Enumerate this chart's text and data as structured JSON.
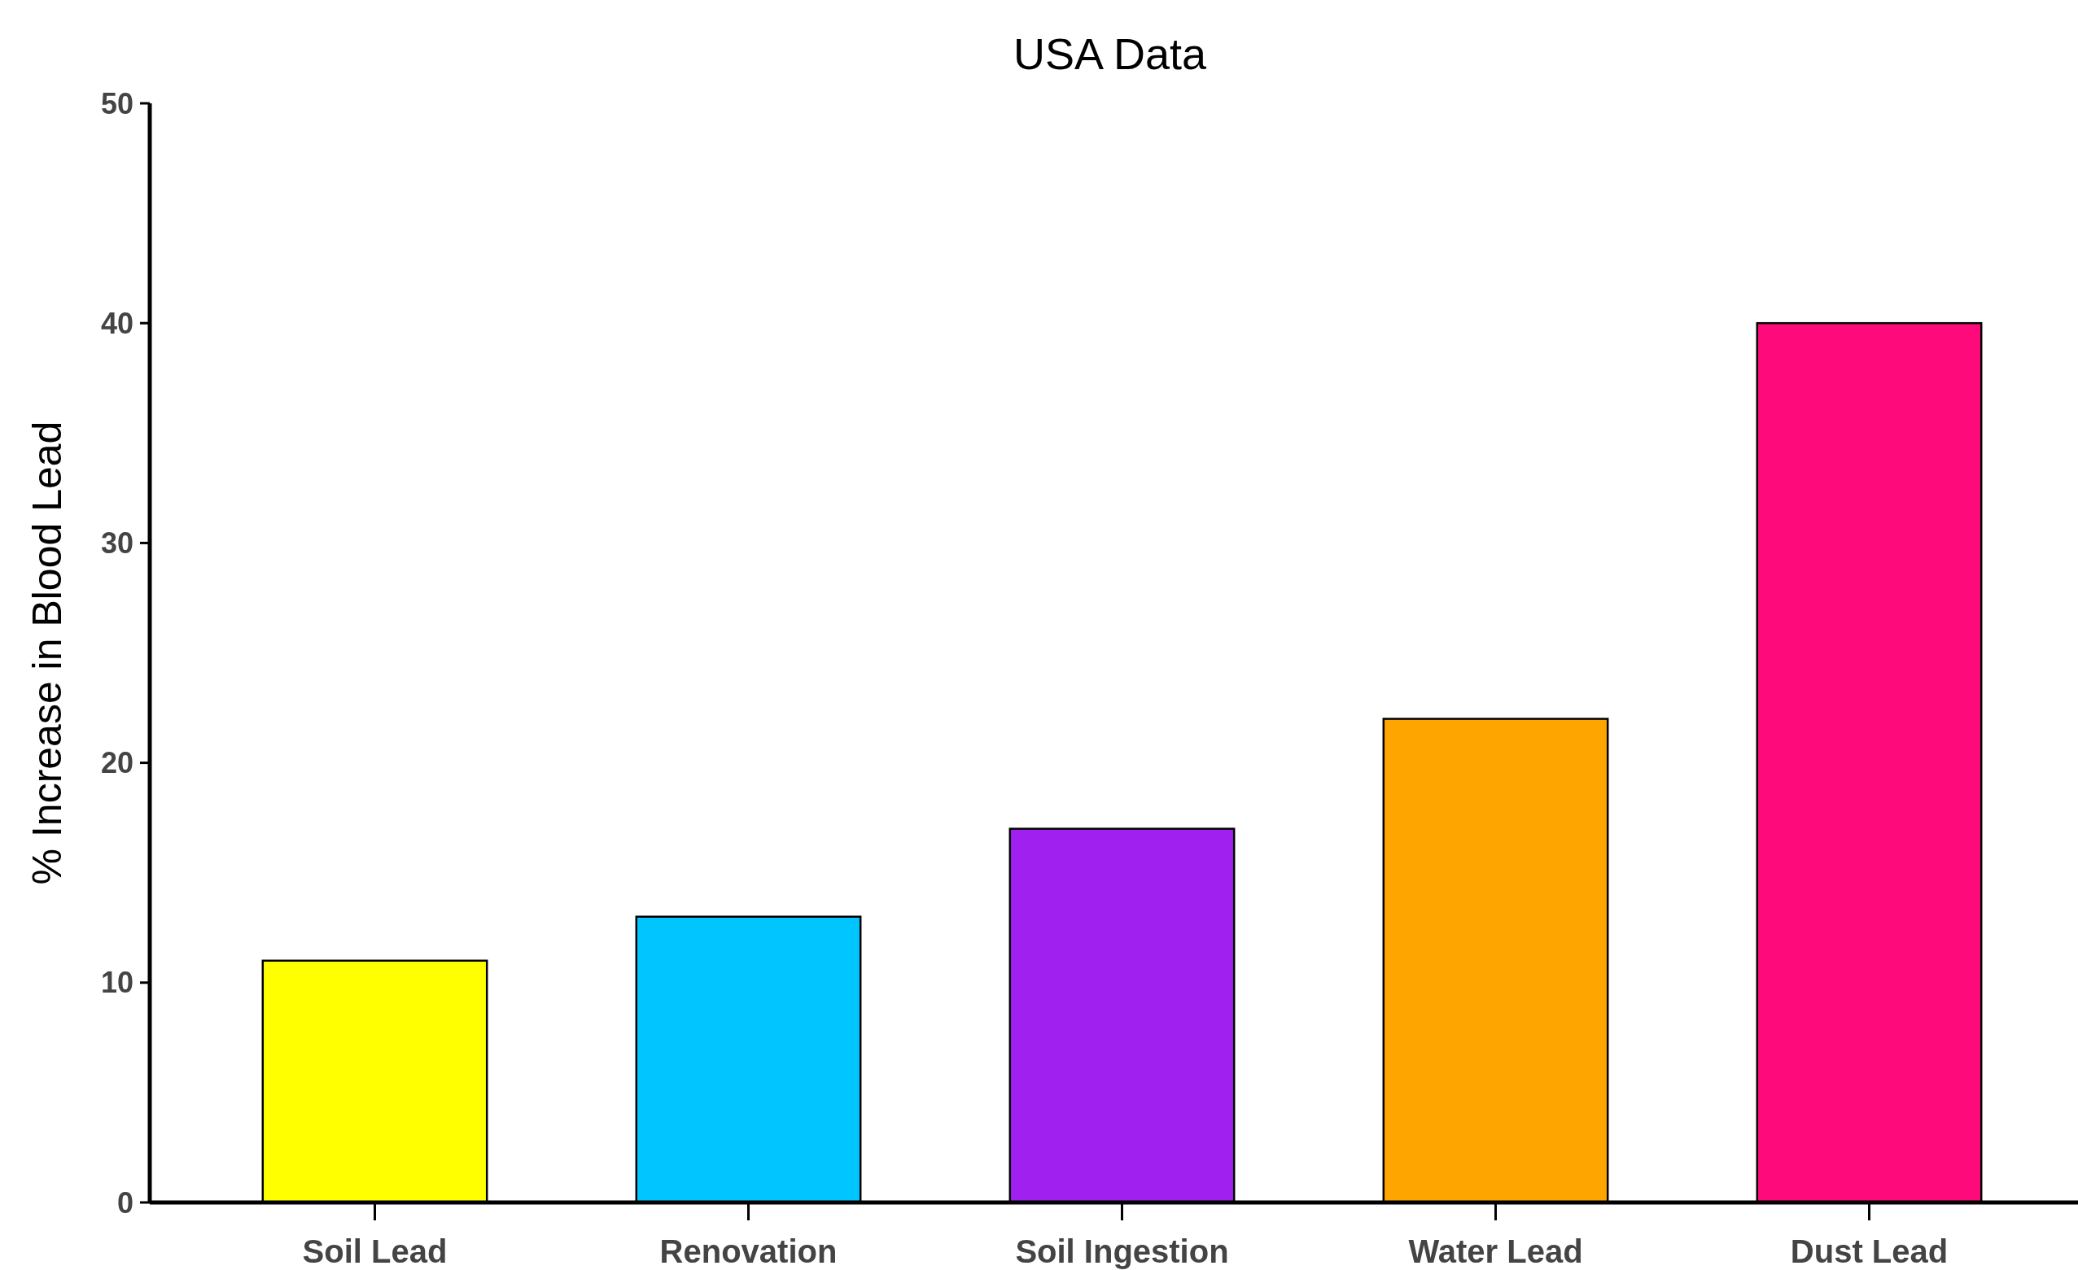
{
  "chart_data": {
    "type": "bar",
    "title": "USA Data",
    "ylabel": "% Increase in Blood Lead",
    "categories": [
      "Soil Lead",
      "Renovation",
      "Soil Ingestion",
      "Water Lead",
      "Dust Lead"
    ],
    "values": [
      11,
      13,
      17,
      22,
      40
    ],
    "colors": [
      "#ffff00",
      "#00c5ff",
      "#a020f0",
      "#ffa500",
      "#ff0a7a"
    ],
    "ylim": [
      0,
      50
    ],
    "yticks": [
      0,
      10,
      20,
      30,
      40,
      50
    ],
    "grid": false
  }
}
